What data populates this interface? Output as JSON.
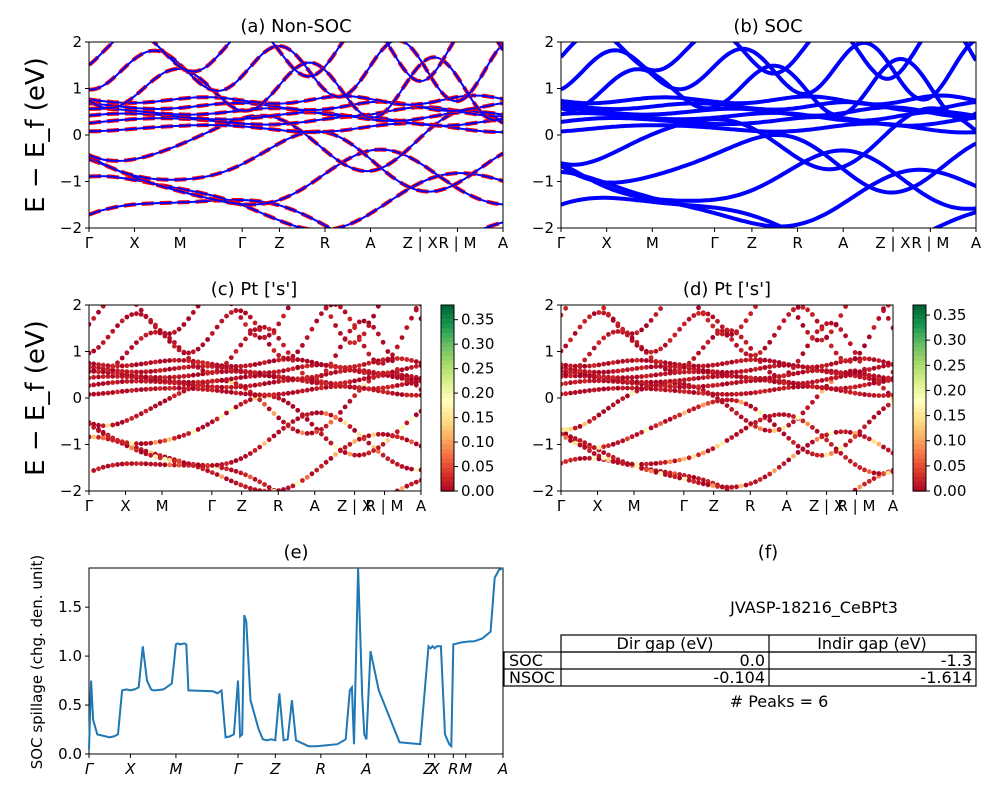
{
  "figure": {
    "ylabel_top": "E − E_f (eV)",
    "ylabel_mid": "E − E_f (eV)"
  },
  "chart_data": [
    {
      "type": "line",
      "title": "(a) Non-SOC",
      "ylim": [
        -2,
        2
      ],
      "yticks": [
        "2",
        "1",
        "0",
        "−1",
        "−2"
      ],
      "xticks": [
        "Γ",
        "X",
        "M",
        "Γ",
        "Z",
        "R",
        "A",
        "Z | X",
        "R | M",
        "A"
      ],
      "series": [
        {
          "color": "#0000ff",
          "style": "solid"
        },
        {
          "color": "#ff0000",
          "style": "dashed"
        }
      ]
    },
    {
      "type": "line",
      "title": "(b) SOC",
      "ylim": [
        -2,
        2
      ],
      "yticks": [
        "2",
        "1",
        "0",
        "−1",
        "−2"
      ],
      "xticks": [
        "Γ",
        "X",
        "M",
        "Γ",
        "Z",
        "R",
        "A",
        "Z | X",
        "R | M",
        "A"
      ],
      "series": [
        {
          "color": "#0000ff",
          "style": "solid"
        }
      ]
    },
    {
      "type": "scatter",
      "title": "(c)  Pt ['s']",
      "ylim": [
        -2,
        2
      ],
      "yticks": [
        "2",
        "1",
        "0",
        "−1",
        "−2"
      ],
      "xticks": [
        "Γ",
        "X",
        "M",
        "Γ",
        "Z",
        "R",
        "A",
        "Z | X",
        "R | M",
        "A"
      ],
      "colorbar": {
        "min": 0.0,
        "max": 0.38,
        "ticks": [
          "0.35",
          "0.30",
          "0.25",
          "0.20",
          "0.15",
          "0.10",
          "0.05",
          "0.00"
        ]
      }
    },
    {
      "type": "scatter",
      "title": "(d) Pt ['s']",
      "ylim": [
        -2,
        2
      ],
      "yticks": [
        "2",
        "1",
        "0",
        "−1",
        "−2"
      ],
      "xticks": [
        "Γ",
        "X",
        "M",
        "Γ",
        "Z",
        "R",
        "A",
        "Z | X",
        "R | M",
        "A"
      ],
      "colorbar": {
        "min": 0.0,
        "max": 0.37,
        "ticks": [
          "0.35",
          "0.30",
          "0.25",
          "0.20",
          "0.15",
          "0.10",
          "0.05",
          "0.00"
        ]
      }
    },
    {
      "type": "line",
      "title": "(e)",
      "ylabel": "SOC spillage (chg. den. unit)",
      "ylim": [
        0,
        1.9
      ],
      "yticks": [
        "1.5",
        "1.0",
        "0.5",
        "0.0"
      ],
      "xticks": [
        "Γ",
        "X",
        "M",
        "Γ",
        "Z",
        "R",
        "A",
        "Z",
        "X",
        "R",
        "M",
        "A"
      ],
      "color": "#1f77b4",
      "x": [
        0,
        0.005,
        0.01,
        0.02,
        0.04,
        0.05,
        0.06,
        0.07,
        0.08,
        0.09,
        0.1,
        0.11,
        0.12,
        0.13,
        0.14,
        0.15,
        0.155,
        0.16,
        0.18,
        0.2,
        0.21,
        0.215,
        0.22,
        0.23,
        0.235,
        0.24,
        0.3,
        0.31,
        0.32,
        0.33,
        0.34,
        0.35,
        0.36,
        0.365,
        0.37,
        0.375,
        0.38,
        0.39,
        0.4,
        0.41,
        0.42,
        0.43,
        0.44,
        0.45,
        0.46,
        0.47,
        0.48,
        0.49,
        0.5,
        0.51,
        0.52,
        0.53,
        0.54,
        0.55,
        0.6,
        0.62,
        0.63,
        0.635,
        0.64,
        0.65,
        0.66,
        0.665,
        0.67,
        0.68,
        0.7,
        0.75,
        0.8,
        0.82,
        0.825,
        0.83,
        0.835,
        0.84,
        0.85,
        0.86,
        0.87,
        0.875,
        0.88,
        0.9,
        0.92,
        0.93,
        0.95,
        0.97,
        0.98,
        0.99,
        1.0
      ],
      "y": [
        0.05,
        0.75,
        0.35,
        0.2,
        0.18,
        0.17,
        0.18,
        0.2,
        0.65,
        0.66,
        0.65,
        0.66,
        0.68,
        1.1,
        0.75,
        0.66,
        0.65,
        0.65,
        0.66,
        0.72,
        1.12,
        1.13,
        1.12,
        1.13,
        1.12,
        0.65,
        0.64,
        0.62,
        0.65,
        0.17,
        0.18,
        0.2,
        0.75,
        0.18,
        0.2,
        1.42,
        1.35,
        0.55,
        0.4,
        0.25,
        0.15,
        0.14,
        0.15,
        0.14,
        0.62,
        0.14,
        0.15,
        0.55,
        0.14,
        0.12,
        0.1,
        0.08,
        0.08,
        0.08,
        0.1,
        0.15,
        0.65,
        0.68,
        0.1,
        1.92,
        0.6,
        0.2,
        0.15,
        1.05,
        0.65,
        0.12,
        0.1,
        1.1,
        1.08,
        1.1,
        1.08,
        1.1,
        1.1,
        0.2,
        0.1,
        0.08,
        1.12,
        1.14,
        1.15,
        1.15,
        1.18,
        1.25,
        1.8,
        1.88,
        1.92
      ]
    },
    {
      "type": "table",
      "title": "(f)",
      "material": "JVASP-18216_CeBPt3",
      "columns": [
        "Dir gap (eV)",
        "Indir gap (eV)"
      ],
      "rows": [
        {
          "label": "SOC",
          "values": [
            "0.0",
            "-1.3"
          ]
        },
        {
          "label": "NSOC",
          "values": [
            "-0.104",
            "-1.614"
          ]
        }
      ],
      "footer": "# Peaks = 6"
    }
  ]
}
